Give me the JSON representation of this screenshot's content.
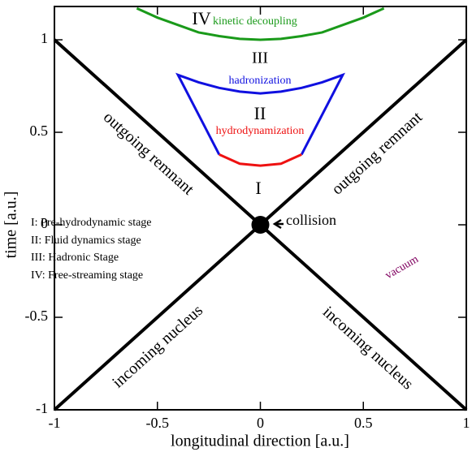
{
  "chart_data": {
    "type": "line",
    "xlabel": "longitudinal direction [a.u.]",
    "ylabel": "time [a.u.]",
    "xlim": [
      -1,
      1
    ],
    "ylim": [
      -1,
      1.18
    ],
    "xticks": [
      -1,
      -0.5,
      0,
      0.5,
      1
    ],
    "yticks": [
      -1,
      -0.5,
      0,
      0.5,
      1
    ],
    "series": [
      {
        "color": "#000000",
        "x": [
          -1,
          1
        ],
        "values": [
          -1,
          1
        ]
      },
      {
        "color": "#000000",
        "x": [
          -1,
          1
        ],
        "values": [
          1,
          -1
        ]
      },
      {
        "color": "#1a9a1a",
        "x": [
          -0.6,
          -0.5,
          -0.4,
          -0.3,
          -0.2,
          -0.1,
          0,
          0.1,
          0.2,
          0.3,
          0.4,
          0.5,
          0.6
        ],
        "values": [
          1.17,
          1.12,
          1.08,
          1.04,
          1.02,
          1.005,
          1.0,
          1.005,
          1.02,
          1.04,
          1.08,
          1.12,
          1.17
        ]
      },
      {
        "color": "#1010e0",
        "x": [
          -0.2,
          -0.4,
          -0.3,
          -0.2,
          -0.1,
          0,
          0.1,
          0.2,
          0.3,
          0.4,
          0.2
        ],
        "values": [
          0.38,
          0.81,
          0.77,
          0.74,
          0.72,
          0.71,
          0.72,
          0.74,
          0.77,
          0.81,
          0.38
        ]
      },
      {
        "color": "#ee1111",
        "x": [
          -0.2,
          -0.1,
          0,
          0.1,
          0.2
        ],
        "values": [
          0.38,
          0.33,
          0.32,
          0.33,
          0.38
        ]
      },
      {
        "color": "#000000",
        "marker": true,
        "x": [
          0
        ],
        "values": [
          0
        ]
      }
    ],
    "annotations": [
      "IV",
      "kinetic decoupling",
      "III",
      "hadronization",
      "II",
      "hydrodynamization",
      "I",
      "collision",
      "outgoing remnant",
      "outgoing remnant",
      "incoming nucleus",
      "incoming nucleus",
      "vacuum"
    ],
    "stages": [
      "I: Pre-hydrodynamic stage",
      "II: Fluid dynamics stage",
      "III: Hadronic Stage",
      "IV: Free-streaming stage"
    ]
  }
}
